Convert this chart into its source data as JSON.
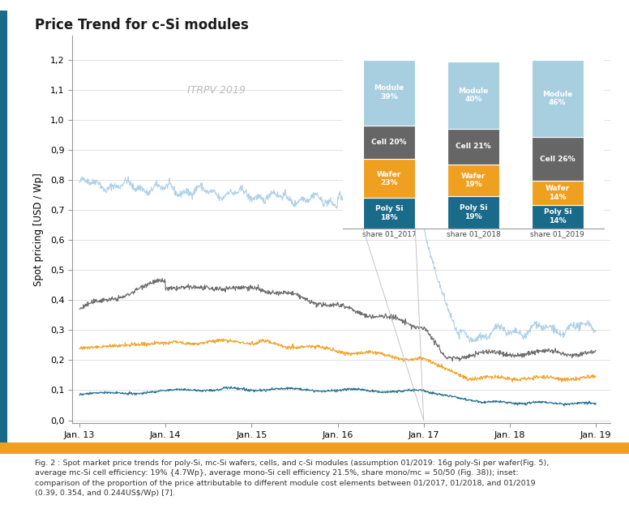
{
  "title": "Price Trend for c-Si modules",
  "ylabel": "Spot pricing [USD / Wp]",
  "xlabel_ticks": [
    "Jan. 13",
    "Jan. 14",
    "Jan. 15",
    "Jan. 16",
    "Jan. 17",
    "Jan. 18",
    "Jan. 19"
  ],
  "yticks": [
    0.0,
    0.1,
    0.2,
    0.3,
    0.4,
    0.5,
    0.6,
    0.7,
    0.8,
    0.9,
    1.0,
    1.1,
    1.2
  ],
  "itrpv_label": "ITRPV 2019",
  "line_colors": {
    "module": "#aacfe8",
    "cell": "#666666",
    "wafer": "#f0a020",
    "poly": "#1a6b8a"
  },
  "caption": "Fig. 2 : Spot market price trends for poly-Si, mc-Si wafers, cells, and c-Si modules (assumption 01/2019: 16g poly-Si per wafer(Fig. 5),\naverage mc-Si cell efficiency: 19% {4.7Wp}, average mono-Si cell efficiency 21.5%, share mono/mc = 50/50 (Fig. 38)); inset:\ncomparison of the proportion of the price attributable to different module cost elements between 01/2017, 01/2018, and 01/2019\n(0.39, 0.354, and 0.244US$/Wp) [7].",
  "bar_colors": {
    "module": "#a8cfe0",
    "cell": "#666666",
    "wafer": "#f0a020",
    "poly": "#1a6b8a"
  },
  "bar_data": {
    "share_2017": {
      "poly": 18,
      "wafer": 23,
      "cell": 20,
      "module": 39
    },
    "share_2018": {
      "poly": 19,
      "wafer": 19,
      "cell": 21,
      "module": 40
    },
    "share_2019": {
      "poly": 14,
      "wafer": 14,
      "cell": 26,
      "module": 46
    }
  },
  "bar_labels": [
    "share 01_2017",
    "share 01_2018",
    "share 01_2019"
  ],
  "background_color": "#ffffff",
  "plot_bg_color": "#ffffff",
  "left_accent_color": "#1a6b8a",
  "bottom_accent_color": "#f0a020",
  "grid_color": "#dddddd",
  "axis_color": "#999999"
}
